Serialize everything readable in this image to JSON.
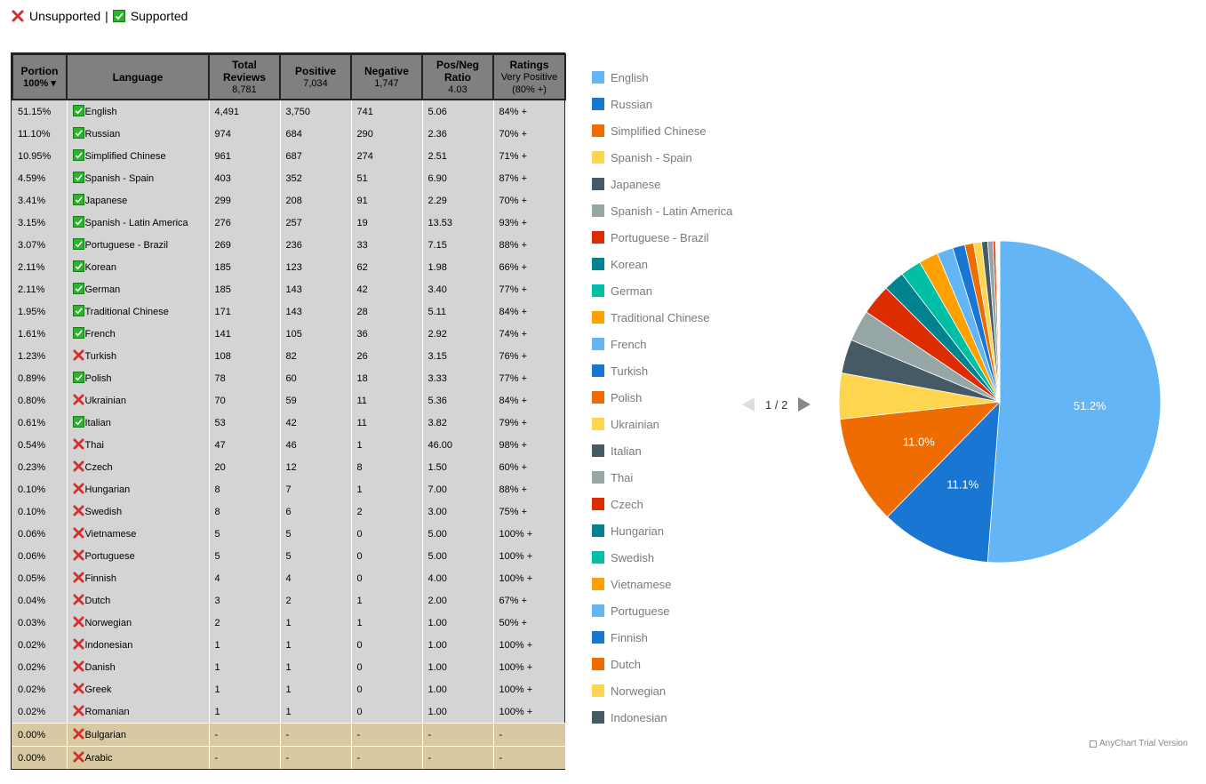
{
  "legend_top": {
    "unsupported": "Unsupported",
    "separator": "|",
    "supported": "Supported"
  },
  "table": {
    "headers": {
      "portion": {
        "label": "Portion",
        "sub": "100% ▾"
      },
      "language": {
        "label": "Language"
      },
      "total": {
        "label": "Total Reviews",
        "sub": "8,781"
      },
      "positive": {
        "label": "Positive",
        "sub": "7,034"
      },
      "negative": {
        "label": "Negative",
        "sub": "1,747"
      },
      "ratio": {
        "label": "Pos/Neg Ratio",
        "sub": "4.03"
      },
      "ratings": {
        "label": "Ratings",
        "sub": "Very Positive",
        "sub2": "(80% +)"
      }
    },
    "rows": [
      {
        "portion": "51.15%",
        "language": "English",
        "supported": true,
        "total": "4,491",
        "positive": "3,750",
        "negative": "741",
        "ratio": "5.06",
        "rating": "84% +"
      },
      {
        "portion": "11.10%",
        "language": "Russian",
        "supported": true,
        "total": "974",
        "positive": "684",
        "negative": "290",
        "ratio": "2.36",
        "rating": "70% +"
      },
      {
        "portion": "10.95%",
        "language": "Simplified Chinese",
        "supported": true,
        "total": "961",
        "positive": "687",
        "negative": "274",
        "ratio": "2.51",
        "rating": "71% +"
      },
      {
        "portion": "4.59%",
        "language": "Spanish - Spain",
        "supported": true,
        "total": "403",
        "positive": "352",
        "negative": "51",
        "ratio": "6.90",
        "rating": "87% +"
      },
      {
        "portion": "3.41%",
        "language": "Japanese",
        "supported": true,
        "total": "299",
        "positive": "208",
        "negative": "91",
        "ratio": "2.29",
        "rating": "70% +"
      },
      {
        "portion": "3.15%",
        "language": "Spanish - Latin America",
        "supported": true,
        "total": "276",
        "positive": "257",
        "negative": "19",
        "ratio": "13.53",
        "rating": "93% +"
      },
      {
        "portion": "3.07%",
        "language": "Portuguese - Brazil",
        "supported": true,
        "total": "269",
        "positive": "236",
        "negative": "33",
        "ratio": "7.15",
        "rating": "88% +"
      },
      {
        "portion": "2.11%",
        "language": "Korean",
        "supported": true,
        "total": "185",
        "positive": "123",
        "negative": "62",
        "ratio": "1.98",
        "rating": "66% +"
      },
      {
        "portion": "2.11%",
        "language": "German",
        "supported": true,
        "total": "185",
        "positive": "143",
        "negative": "42",
        "ratio": "3.40",
        "rating": "77% +"
      },
      {
        "portion": "1.95%",
        "language": "Traditional Chinese",
        "supported": true,
        "total": "171",
        "positive": "143",
        "negative": "28",
        "ratio": "5.11",
        "rating": "84% +"
      },
      {
        "portion": "1.61%",
        "language": "French",
        "supported": true,
        "total": "141",
        "positive": "105",
        "negative": "36",
        "ratio": "2.92",
        "rating": "74% +"
      },
      {
        "portion": "1.23%",
        "language": "Turkish",
        "supported": false,
        "total": "108",
        "positive": "82",
        "negative": "26",
        "ratio": "3.15",
        "rating": "76% +"
      },
      {
        "portion": "0.89%",
        "language": "Polish",
        "supported": true,
        "total": "78",
        "positive": "60",
        "negative": "18",
        "ratio": "3.33",
        "rating": "77% +"
      },
      {
        "portion": "0.80%",
        "language": "Ukrainian",
        "supported": false,
        "total": "70",
        "positive": "59",
        "negative": "11",
        "ratio": "5.36",
        "rating": "84% +"
      },
      {
        "portion": "0.61%",
        "language": "Italian",
        "supported": true,
        "total": "53",
        "positive": "42",
        "negative": "11",
        "ratio": "3.82",
        "rating": "79% +"
      },
      {
        "portion": "0.54%",
        "language": "Thai",
        "supported": false,
        "total": "47",
        "positive": "46",
        "negative": "1",
        "ratio": "46.00",
        "rating": "98% +"
      },
      {
        "portion": "0.23%",
        "language": "Czech",
        "supported": false,
        "total": "20",
        "positive": "12",
        "negative": "8",
        "ratio": "1.50",
        "rating": "60% +"
      },
      {
        "portion": "0.10%",
        "language": "Hungarian",
        "supported": false,
        "total": "8",
        "positive": "7",
        "negative": "1",
        "ratio": "7.00",
        "rating": "88% +"
      },
      {
        "portion": "0.10%",
        "language": "Swedish",
        "supported": false,
        "total": "8",
        "positive": "6",
        "negative": "2",
        "ratio": "3.00",
        "rating": "75% +"
      },
      {
        "portion": "0.06%",
        "language": "Vietnamese",
        "supported": false,
        "total": "5",
        "positive": "5",
        "negative": "0",
        "ratio": "5.00",
        "rating": "100% +"
      },
      {
        "portion": "0.06%",
        "language": "Portuguese",
        "supported": false,
        "total": "5",
        "positive": "5",
        "negative": "0",
        "ratio": "5.00",
        "rating": "100% +"
      },
      {
        "portion": "0.05%",
        "language": "Finnish",
        "supported": false,
        "total": "4",
        "positive": "4",
        "negative": "0",
        "ratio": "4.00",
        "rating": "100% +"
      },
      {
        "portion": "0.04%",
        "language": "Dutch",
        "supported": false,
        "total": "3",
        "positive": "2",
        "negative": "1",
        "ratio": "2.00",
        "rating": "67% +"
      },
      {
        "portion": "0.03%",
        "language": "Norwegian",
        "supported": false,
        "total": "2",
        "positive": "1",
        "negative": "1",
        "ratio": "1.00",
        "rating": "50% +"
      },
      {
        "portion": "0.02%",
        "language": "Indonesian",
        "supported": false,
        "total": "1",
        "positive": "1",
        "negative": "0",
        "ratio": "1.00",
        "rating": "100% +"
      },
      {
        "portion": "0.02%",
        "language": "Danish",
        "supported": false,
        "total": "1",
        "positive": "1",
        "negative": "0",
        "ratio": "1.00",
        "rating": "100% +"
      },
      {
        "portion": "0.02%",
        "language": "Greek",
        "supported": false,
        "total": "1",
        "positive": "1",
        "negative": "0",
        "ratio": "1.00",
        "rating": "100% +"
      },
      {
        "portion": "0.02%",
        "language": "Romanian",
        "supported": false,
        "total": "1",
        "positive": "1",
        "negative": "0",
        "ratio": "1.00",
        "rating": "100% +"
      },
      {
        "portion": "0.00%",
        "language": "Bulgarian",
        "supported": false,
        "total": "-",
        "positive": "-",
        "negative": "-",
        "ratio": "-",
        "rating": "-",
        "highlight": true
      },
      {
        "portion": "0.00%",
        "language": "Arabic",
        "supported": false,
        "total": "-",
        "positive": "-",
        "negative": "-",
        "ratio": "-",
        "rating": "-",
        "highlight": true
      }
    ]
  },
  "chart_data": {
    "type": "pie",
    "title": "",
    "legend_position": "left",
    "pager": "1 / 2",
    "credit": "AnyChart Trial Version",
    "slices": [
      {
        "name": "English",
        "value": 4491,
        "color": "#64b5f6",
        "label": "51.2%"
      },
      {
        "name": "Russian",
        "value": 974,
        "color": "#1976d2",
        "label": "11.1%"
      },
      {
        "name": "Simplified Chinese",
        "value": 961,
        "color": "#ef6c00",
        "label": "11.0%"
      },
      {
        "name": "Spanish - Spain",
        "value": 403,
        "color": "#ffd54f",
        "label": ""
      },
      {
        "name": "Japanese",
        "value": 299,
        "color": "#455a64",
        "label": ""
      },
      {
        "name": "Spanish - Latin America",
        "value": 276,
        "color": "#96a6a6",
        "label": ""
      },
      {
        "name": "Portuguese - Brazil",
        "value": 269,
        "color": "#dd2c00",
        "label": ""
      },
      {
        "name": "Korean",
        "value": 185,
        "color": "#00838f",
        "label": ""
      },
      {
        "name": "German",
        "value": 185,
        "color": "#00bfa5",
        "label": ""
      },
      {
        "name": "Traditional Chinese",
        "value": 171,
        "color": "#ffa000",
        "label": ""
      },
      {
        "name": "French",
        "value": 141,
        "color": "#64b5f6",
        "label": ""
      },
      {
        "name": "Turkish",
        "value": 108,
        "color": "#1976d2",
        "label": ""
      },
      {
        "name": "Polish",
        "value": 78,
        "color": "#ef6c00",
        "label": ""
      },
      {
        "name": "Ukrainian",
        "value": 70,
        "color": "#ffd54f",
        "label": ""
      },
      {
        "name": "Italian",
        "value": 53,
        "color": "#455a64",
        "label": ""
      },
      {
        "name": "Thai",
        "value": 47,
        "color": "#96a6a6",
        "label": ""
      },
      {
        "name": "Czech",
        "value": 20,
        "color": "#dd2c00",
        "label": ""
      },
      {
        "name": "Hungarian",
        "value": 8,
        "color": "#00838f",
        "label": ""
      },
      {
        "name": "Swedish",
        "value": 8,
        "color": "#00bfa5",
        "label": ""
      },
      {
        "name": "Vietnamese",
        "value": 5,
        "color": "#ffa000",
        "label": ""
      },
      {
        "name": "Portuguese",
        "value": 5,
        "color": "#64b5f6",
        "label": ""
      },
      {
        "name": "Finnish",
        "value": 4,
        "color": "#1976d2",
        "label": ""
      },
      {
        "name": "Dutch",
        "value": 3,
        "color": "#ef6c00",
        "label": ""
      },
      {
        "name": "Norwegian",
        "value": 2,
        "color": "#ffd54f",
        "label": ""
      },
      {
        "name": "Indonesian",
        "value": 1,
        "color": "#455a64",
        "label": ""
      },
      {
        "name": "Danish",
        "value": 1,
        "color": "#96a6a6",
        "label": ""
      },
      {
        "name": "Greek",
        "value": 1,
        "color": "#dd2c00",
        "label": ""
      },
      {
        "name": "Romanian",
        "value": 1,
        "color": "#00838f",
        "label": ""
      }
    ],
    "legend_visible": [
      "English",
      "Russian",
      "Simplified Chinese",
      "Spanish - Spain",
      "Japanese",
      "Spanish - Latin America",
      "Portuguese - Brazil",
      "Korean",
      "German",
      "Traditional Chinese",
      "French",
      "Turkish",
      "Polish",
      "Ukrainian",
      "Italian",
      "Thai",
      "Czech",
      "Hungarian",
      "Swedish",
      "Vietnamese",
      "Portuguese",
      "Finnish",
      "Dutch",
      "Norwegian",
      "Indonesian"
    ]
  }
}
